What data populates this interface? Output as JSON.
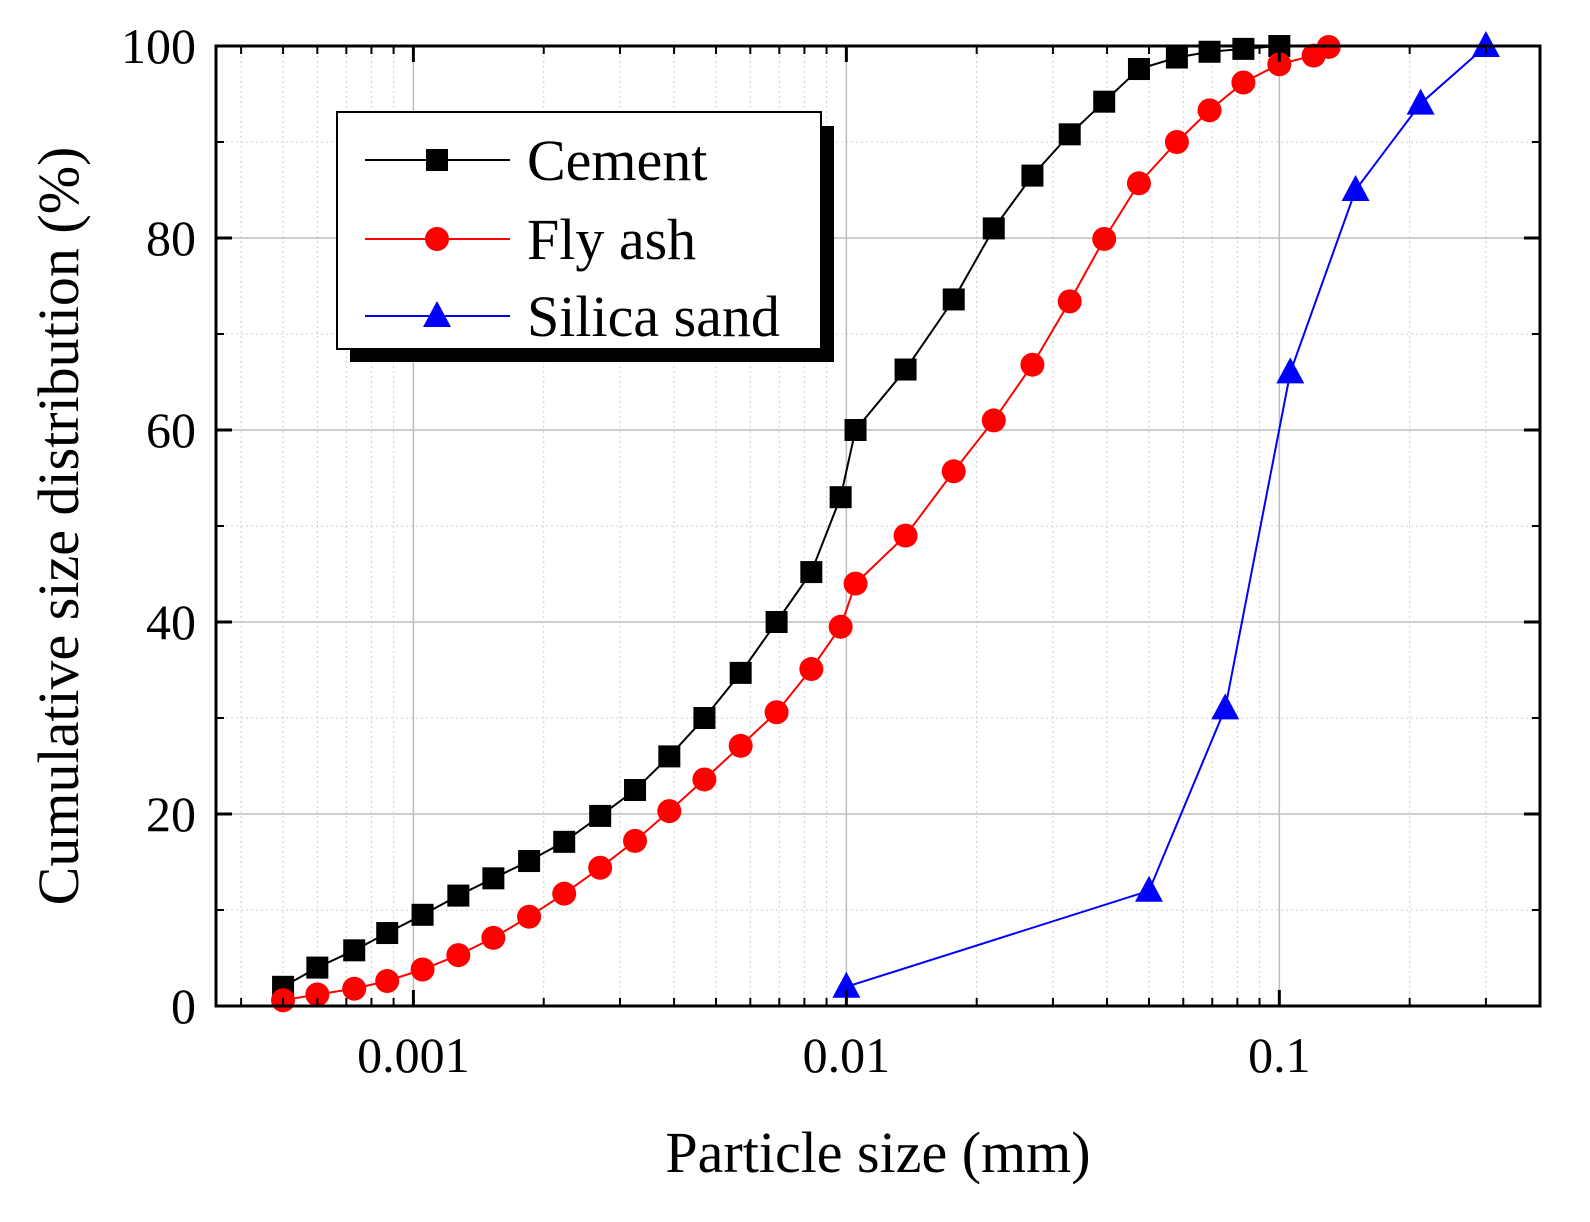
{
  "chart_data": {
    "type": "line",
    "title": "",
    "xlabel": "Particle size (mm)",
    "ylabel": "Cumulative size distribution (%)",
    "xscale": "log",
    "xlim": [
      0.00035,
      0.4
    ],
    "ylim": [
      0,
      100
    ],
    "xticks": [
      {
        "value": 0.001,
        "label": "0.001"
      },
      {
        "value": 0.01,
        "label": "0.01"
      },
      {
        "value": 0.1,
        "label": "0.1"
      }
    ],
    "yticks": [
      {
        "value": 0,
        "label": "0"
      },
      {
        "value": 20,
        "label": "20"
      },
      {
        "value": 40,
        "label": "40"
      },
      {
        "value": 60,
        "label": "60"
      },
      {
        "value": 80,
        "label": "80"
      },
      {
        "value": 100,
        "label": "100"
      }
    ],
    "grid": true,
    "legend_position": "top-left",
    "series": [
      {
        "name": "Cement",
        "color": "#000000",
        "marker": "square",
        "x": [
          0.0005,
          0.0006,
          0.00073,
          0.00087,
          0.00105,
          0.00127,
          0.00153,
          0.00185,
          0.00223,
          0.0027,
          0.00325,
          0.0039,
          0.0047,
          0.0057,
          0.0069,
          0.0083,
          0.0097,
          0.0105,
          0.0137,
          0.0177,
          0.0219,
          0.0269,
          0.0328,
          0.0394,
          0.0474,
          0.058,
          0.069,
          0.0826,
          0.1
        ],
        "y": [
          2.0,
          4.0,
          5.8,
          7.6,
          9.5,
          11.5,
          13.3,
          15.1,
          17.1,
          19.8,
          22.5,
          26.0,
          30.0,
          34.7,
          40.0,
          45.2,
          53.0,
          60.0,
          66.3,
          73.6,
          81.0,
          86.5,
          90.8,
          94.2,
          97.6,
          98.8,
          99.4,
          99.7,
          100.0
        ]
      },
      {
        "name": "Fly ash",
        "color": "#ff0000",
        "marker": "circle",
        "x": [
          0.0005,
          0.0006,
          0.00073,
          0.00087,
          0.00105,
          0.00127,
          0.00153,
          0.00185,
          0.00223,
          0.0027,
          0.00325,
          0.0039,
          0.0047,
          0.0057,
          0.0069,
          0.0083,
          0.0097,
          0.0105,
          0.0137,
          0.0177,
          0.0219,
          0.0269,
          0.0328,
          0.0394,
          0.0474,
          0.058,
          0.069,
          0.0826,
          0.1,
          0.12,
          0.13
        ],
        "y": [
          0.6,
          1.2,
          1.8,
          2.6,
          3.8,
          5.3,
          7.1,
          9.3,
          11.7,
          14.4,
          17.2,
          20.3,
          23.6,
          27.1,
          30.6,
          35.1,
          39.5,
          44.0,
          49.0,
          55.7,
          61.0,
          66.8,
          73.4,
          79.9,
          85.7,
          90.0,
          93.3,
          96.2,
          98.1,
          99.0,
          99.9
        ]
      },
      {
        "name": "Silica sand",
        "color": "#0000ff",
        "marker": "triangle",
        "x": [
          0.01,
          0.05,
          0.075,
          0.106,
          0.15,
          0.212,
          0.3
        ],
        "y": [
          2.0,
          12.0,
          31.0,
          66.0,
          85.0,
          94.0,
          100.0
        ]
      }
    ]
  }
}
